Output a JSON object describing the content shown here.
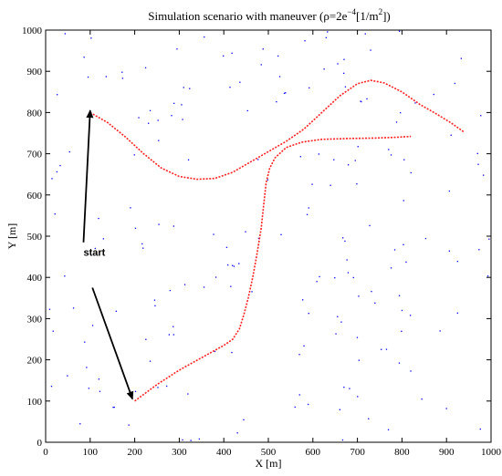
{
  "chart_data": {
    "type": "scatter",
    "title_main": "Simulation scenario with maneuver (ρ=2e",
    "title_sup1": "−4",
    "title_mid": "[1/m",
    "title_sup2": "2",
    "title_end": "])",
    "xlabel": "X [m]",
    "ylabel": "Y [m]",
    "xlim": [
      0,
      1000
    ],
    "ylim": [
      0,
      1000
    ],
    "xticks": [
      "0",
      "100",
      "200",
      "300",
      "400",
      "500",
      "600",
      "700",
      "800",
      "900",
      "1000"
    ],
    "yticks": [
      "0",
      "100",
      "200",
      "300",
      "400",
      "500",
      "600",
      "700",
      "800",
      "900",
      "1000"
    ],
    "grid": false,
    "density": 0.0002,
    "point_color": "#0000ff",
    "trajectory_color": "#ff2020",
    "trajectories": [
      {
        "points": [
          [
            100,
            800
          ],
          [
            140,
            775
          ],
          [
            180,
            740
          ],
          [
            220,
            700
          ],
          [
            260,
            665
          ],
          [
            300,
            645
          ],
          [
            340,
            638
          ],
          [
            380,
            640
          ],
          [
            420,
            655
          ],
          [
            460,
            680
          ],
          [
            500,
            705
          ],
          [
            540,
            730
          ],
          [
            580,
            760
          ],
          [
            620,
            800
          ],
          [
            660,
            840
          ],
          [
            700,
            870
          ],
          [
            730,
            878
          ],
          [
            760,
            872
          ],
          [
            800,
            850
          ],
          [
            840,
            820
          ],
          [
            880,
            795
          ],
          [
            910,
            775
          ],
          [
            940,
            752
          ]
        ]
      },
      {
        "points": [
          [
            200,
            100
          ],
          [
            250,
            140
          ],
          [
            300,
            175
          ],
          [
            350,
            205
          ],
          [
            400,
            235
          ],
          [
            420,
            250
          ],
          [
            435,
            275
          ],
          [
            445,
            310
          ],
          [
            455,
            350
          ],
          [
            465,
            400
          ],
          [
            475,
            460
          ],
          [
            484,
            520
          ],
          [
            490,
            580
          ],
          [
            495,
            630
          ],
          [
            503,
            665
          ],
          [
            515,
            690
          ],
          [
            540,
            715
          ],
          [
            575,
            728
          ],
          [
            620,
            735
          ],
          [
            680,
            737
          ],
          [
            740,
            738
          ],
          [
            790,
            740
          ],
          [
            820,
            742
          ]
        ]
      }
    ],
    "annotations": [
      {
        "text": "start",
        "x": 85,
        "y": 452
      },
      {
        "arrow_from": [
          85,
          485
        ],
        "arrow_to": [
          100,
          805
        ]
      },
      {
        "arrow_from": [
          105,
          375
        ],
        "arrow_to": [
          195,
          105
        ]
      }
    ]
  }
}
